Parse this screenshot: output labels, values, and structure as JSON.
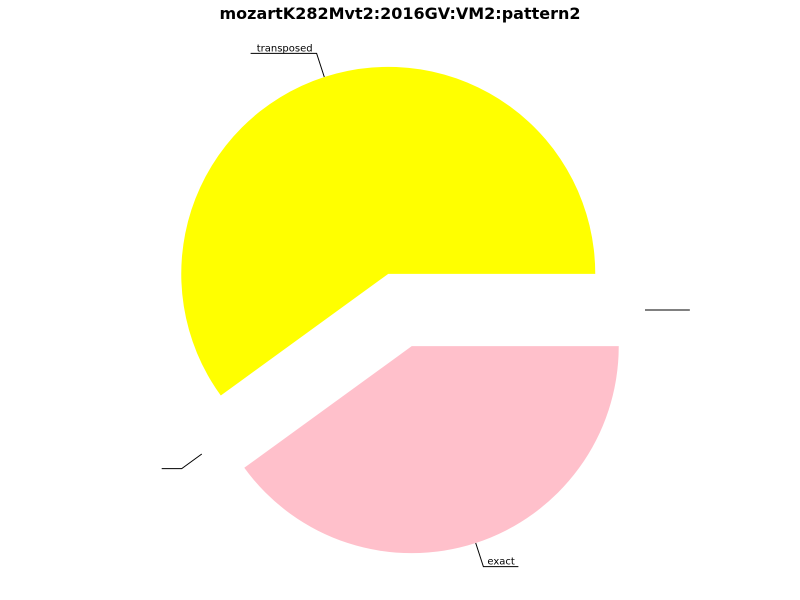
{
  "title": "mozartK282Mvt2:2016GV:VM2:pattern2",
  "chart_data": {
    "type": "pie",
    "title": "mozartK282Mvt2:2016GV:VM2:pattern2",
    "slices": [
      {
        "label": "",
        "value": 0.0,
        "color": "#ffffff"
      },
      {
        "label": "transposed",
        "value": 60.0,
        "color": "#ffff00"
      },
      {
        "label": "",
        "value": 0.0,
        "color": "#ffffff"
      },
      {
        "label": "exact",
        "value": 40.0,
        "color": "#ffc0cb"
      }
    ],
    "start_angle_deg": 0,
    "direction": "counterclockwise",
    "exploded": true,
    "legend": "none"
  }
}
